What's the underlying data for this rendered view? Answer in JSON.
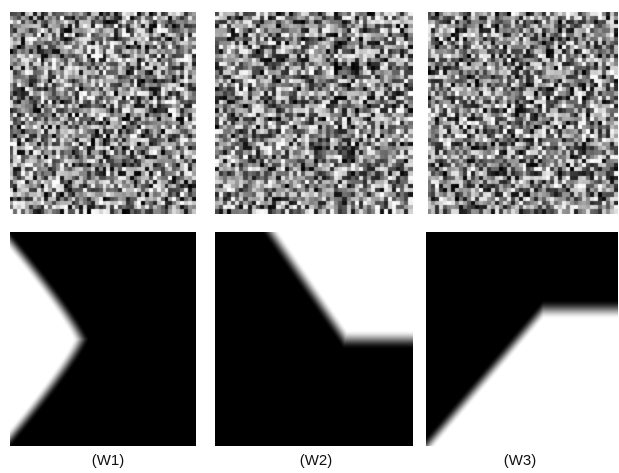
{
  "panels": [
    {
      "label": "(W1)",
      "noise_seed": 11,
      "mask": "left-chevron-white"
    },
    {
      "label": "(W2)",
      "noise_seed": 29,
      "mask": "top-right-step-white"
    },
    {
      "label": "(W3)",
      "noise_seed": 47,
      "mask": "bottom-right-step-white"
    }
  ],
  "colors": {
    "background": "#ffffff",
    "mask_dark": "#000000",
    "mask_light": "#ffffff"
  }
}
